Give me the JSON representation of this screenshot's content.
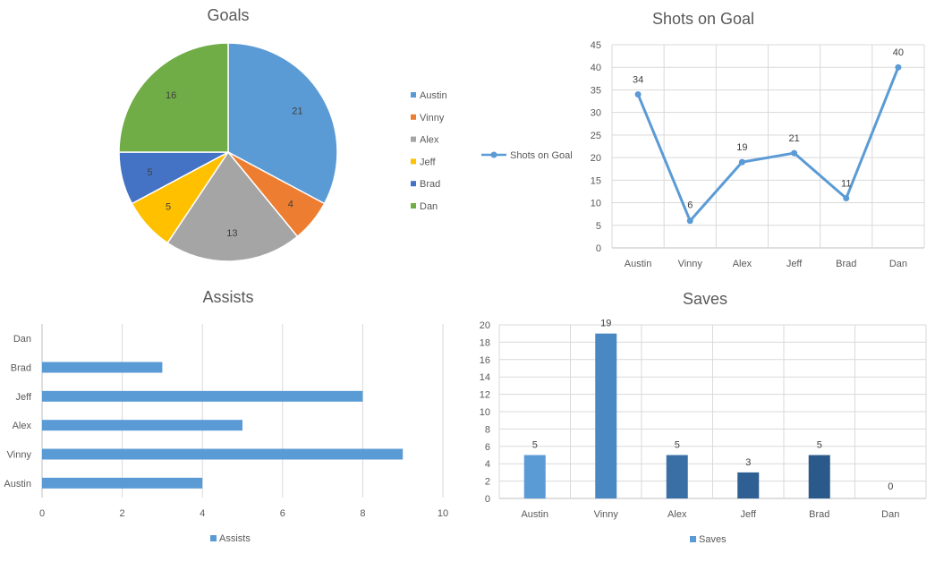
{
  "chart_data": [
    {
      "type": "pie",
      "title": "Goals",
      "categories": [
        "Austin",
        "Vinny",
        "Alex",
        "Jeff",
        "Brad",
        "Dan"
      ],
      "values": [
        21,
        4,
        13,
        5,
        5,
        16
      ],
      "colors": [
        "#5b9bd5",
        "#ed7d31",
        "#a5a5a5",
        "#ffc000",
        "#4472c4",
        "#70ad47"
      ],
      "legend_position": "right"
    },
    {
      "type": "line",
      "title": "Shots on Goal",
      "categories": [
        "Austin",
        "Vinny",
        "Alex",
        "Jeff",
        "Brad",
        "Dan"
      ],
      "series": [
        {
          "name": "Shots on Goal",
          "values": [
            34,
            6,
            19,
            21,
            11,
            40
          ]
        }
      ],
      "ylim": [
        0,
        45
      ],
      "yticks": [
        0,
        5,
        10,
        15,
        20,
        25,
        30,
        35,
        40,
        45
      ],
      "grid": true,
      "color": "#5b9bd5",
      "legend_position": "left"
    },
    {
      "type": "bar",
      "orientation": "horizontal",
      "title": "Assists",
      "categories": [
        "Austin",
        "Vinny",
        "Alex",
        "Jeff",
        "Brad",
        "Dan"
      ],
      "series": [
        {
          "name": "Assists",
          "values": [
            4,
            9,
            5,
            8,
            3,
            0
          ]
        }
      ],
      "xlim": [
        0,
        10
      ],
      "xticks": [
        0,
        2,
        4,
        6,
        8,
        10
      ],
      "grid": true,
      "color": "#5b9bd5",
      "legend_position": "bottom"
    },
    {
      "type": "bar",
      "title": "Saves",
      "categories": [
        "Austin",
        "Vinny",
        "Alex",
        "Jeff",
        "Brad",
        "Dan"
      ],
      "series": [
        {
          "name": "Saves",
          "values": [
            5,
            19,
            5,
            3,
            5,
            0
          ]
        }
      ],
      "ylim": [
        0,
        20
      ],
      "yticks": [
        0,
        2,
        4,
        6,
        8,
        10,
        12,
        14,
        16,
        18,
        20
      ],
      "grid": true,
      "colors": [
        "#5b9bd5",
        "#4a88c4",
        "#3a6fa6",
        "#2f5f93",
        "#2b5a8a",
        "#285283"
      ],
      "legend_position": "bottom"
    }
  ]
}
